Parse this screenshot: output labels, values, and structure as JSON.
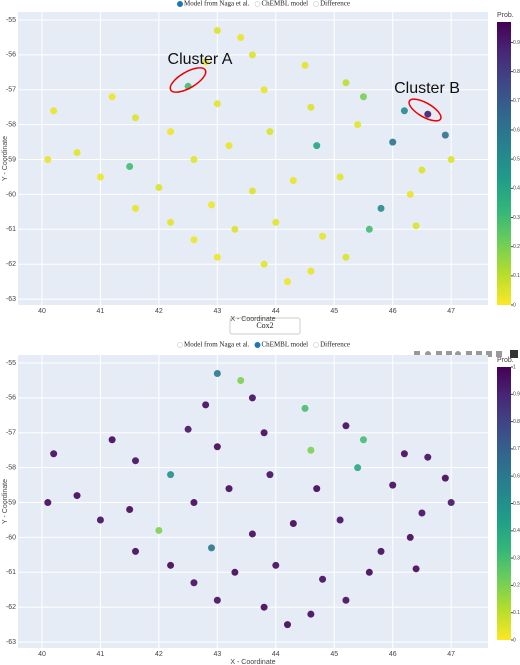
{
  "chart_data": [
    {
      "type": "scatter",
      "legend": [
        {
          "name": "Model from Naga et al.",
          "active": true
        },
        {
          "name": "ChEMBL model",
          "active": false
        },
        {
          "name": "Difference",
          "active": false
        }
      ],
      "x_label": "X - Coordinate",
      "y_label": "Y - Coordinate",
      "colorbar_title": "Prob.",
      "colorscale": "Viridis",
      "reversescale": true,
      "annotations": [
        "Cluster A",
        "Cluster B"
      ],
      "xlim": [
        39.59,
        47.63
      ],
      "ylim": [
        -63.17,
        -54.77
      ],
      "xticks": [
        40,
        41,
        42,
        43,
        44,
        45,
        46,
        47
      ],
      "yticks": [
        -55,
        -56,
        -57,
        -58,
        -59,
        -60,
        -61,
        -62,
        -63
      ],
      "clim": [
        0,
        0.97
      ],
      "cticks": [
        0,
        0.1,
        0.2,
        0.3,
        0.4,
        0.5,
        0.6,
        0.7,
        0.8,
        0.9
      ],
      "grid": true,
      "x": [
        43.0,
        43.4,
        42.8,
        43.6,
        44.5,
        45.2,
        42.5,
        41.2,
        40.2,
        41.6,
        42.2,
        43.0,
        43.8,
        44.6,
        45.5,
        46.2,
        46.6,
        46.9,
        47.0,
        40.1,
        40.6,
        41.0,
        41.5,
        42.0,
        42.6,
        43.2,
        43.9,
        44.7,
        45.4,
        46.0,
        46.5,
        46.3,
        45.8,
        45.1,
        44.3,
        43.6,
        42.9,
        42.2,
        41.6,
        42.6,
        43.3,
        44.0,
        44.8,
        45.6,
        46.4,
        43.0,
        43.8,
        44.6,
        45.2,
        44.2
      ],
      "y": [
        -55.3,
        -55.5,
        -56.2,
        -56.0,
        -56.3,
        -56.8,
        -56.9,
        -57.2,
        -57.6,
        -57.8,
        -58.2,
        -57.4,
        -57.0,
        -57.5,
        -57.2,
        -57.6,
        -57.7,
        -58.3,
        -59.0,
        -59.0,
        -58.8,
        -59.5,
        -59.2,
        -59.8,
        -59.0,
        -58.6,
        -58.2,
        -58.6,
        -58.0,
        -58.5,
        -59.3,
        -60.0,
        -60.4,
        -59.5,
        -59.6,
        -59.9,
        -60.3,
        -60.8,
        -60.4,
        -61.3,
        -61.0,
        -60.8,
        -61.2,
        -61.0,
        -60.9,
        -61.8,
        -62.0,
        -62.2,
        -61.8,
        -62.5
      ],
      "values": [
        0.05,
        0.03,
        0.02,
        0.05,
        0.04,
        0.1,
        0.3,
        0.02,
        0.03,
        0.05,
        0.02,
        0.04,
        0.03,
        0.05,
        0.2,
        0.5,
        0.9,
        0.6,
        0.05,
        0.03,
        0.04,
        0.02,
        0.3,
        0.05,
        0.04,
        0.03,
        0.05,
        0.4,
        0.04,
        0.6,
        0.05,
        0.03,
        0.5,
        0.04,
        0.03,
        0.05,
        0.02,
        0.04,
        0.03,
        0.02,
        0.05,
        0.04,
        0.03,
        0.3,
        0.05,
        0.02,
        0.04,
        0.03,
        0.05,
        0.02
      ]
    },
    {
      "type": "scatter",
      "legend": [
        {
          "name": "Model from Naga et al.",
          "active": false
        },
        {
          "name": "ChEMBL model",
          "active": true
        },
        {
          "name": "Difference",
          "active": false
        }
      ],
      "x_label": "X - Coordinate",
      "y_label": "Y - Coordinate",
      "colorbar_title": "Prob.",
      "colorscale": "Viridis",
      "reversescale": true,
      "xlim": [
        39.59,
        47.63
      ],
      "ylim": [
        -63.17,
        -54.77
      ],
      "xticks": [
        40,
        41,
        42,
        43,
        44,
        45,
        46,
        47
      ],
      "yticks": [
        -55,
        -56,
        -57,
        -58,
        -59,
        -60,
        -61,
        -62,
        -63
      ],
      "clim": [
        0,
        1
      ],
      "cticks": [
        0,
        0.1,
        0.2,
        0.3,
        0.4,
        0.5,
        0.6,
        0.7,
        0.8,
        0.9,
        1
      ],
      "grid": true,
      "x": [
        43.0,
        43.4,
        42.8,
        43.6,
        44.5,
        45.2,
        42.5,
        41.2,
        40.2,
        41.6,
        42.2,
        43.0,
        43.8,
        44.6,
        45.5,
        46.2,
        46.6,
        46.9,
        47.0,
        40.1,
        40.6,
        41.0,
        41.5,
        42.0,
        42.6,
        43.2,
        43.9,
        44.7,
        45.4,
        46.0,
        46.5,
        46.3,
        45.8,
        45.1,
        44.3,
        43.6,
        42.9,
        42.2,
        41.6,
        42.6,
        43.3,
        44.0,
        44.8,
        45.6,
        46.4,
        43.0,
        43.8,
        44.6,
        45.2,
        44.2
      ],
      "y": [
        -55.3,
        -55.5,
        -56.2,
        -56.0,
        -56.3,
        -56.8,
        -56.9,
        -57.2,
        -57.6,
        -57.8,
        -58.2,
        -57.4,
        -57.0,
        -57.5,
        -57.2,
        -57.6,
        -57.7,
        -58.3,
        -59.0,
        -59.0,
        -58.8,
        -59.5,
        -59.2,
        -59.8,
        -59.0,
        -58.6,
        -58.2,
        -58.6,
        -58.0,
        -58.5,
        -59.3,
        -60.0,
        -60.4,
        -59.5,
        -59.6,
        -59.9,
        -60.3,
        -60.8,
        -60.4,
        -61.3,
        -61.0,
        -60.8,
        -61.2,
        -61.0,
        -60.9,
        -61.8,
        -62.0,
        -62.2,
        -61.8,
        -62.5
      ],
      "values": [
        0.6,
        0.2,
        0.98,
        0.97,
        0.3,
        0.98,
        0.95,
        0.99,
        0.98,
        0.97,
        0.5,
        0.99,
        0.98,
        0.2,
        0.3,
        0.98,
        0.97,
        0.99,
        0.95,
        0.98,
        0.99,
        0.97,
        0.98,
        0.2,
        0.99,
        0.98,
        0.97,
        0.99,
        0.4,
        0.98,
        0.97,
        0.99,
        0.98,
        0.97,
        0.99,
        0.98,
        0.6,
        0.99,
        0.98,
        0.97,
        0.99,
        0.98,
        0.97,
        0.99,
        0.98,
        0.97,
        0.99,
        0.98,
        0.97,
        0.99
      ]
    }
  ],
  "dropdown": "Cox2"
}
